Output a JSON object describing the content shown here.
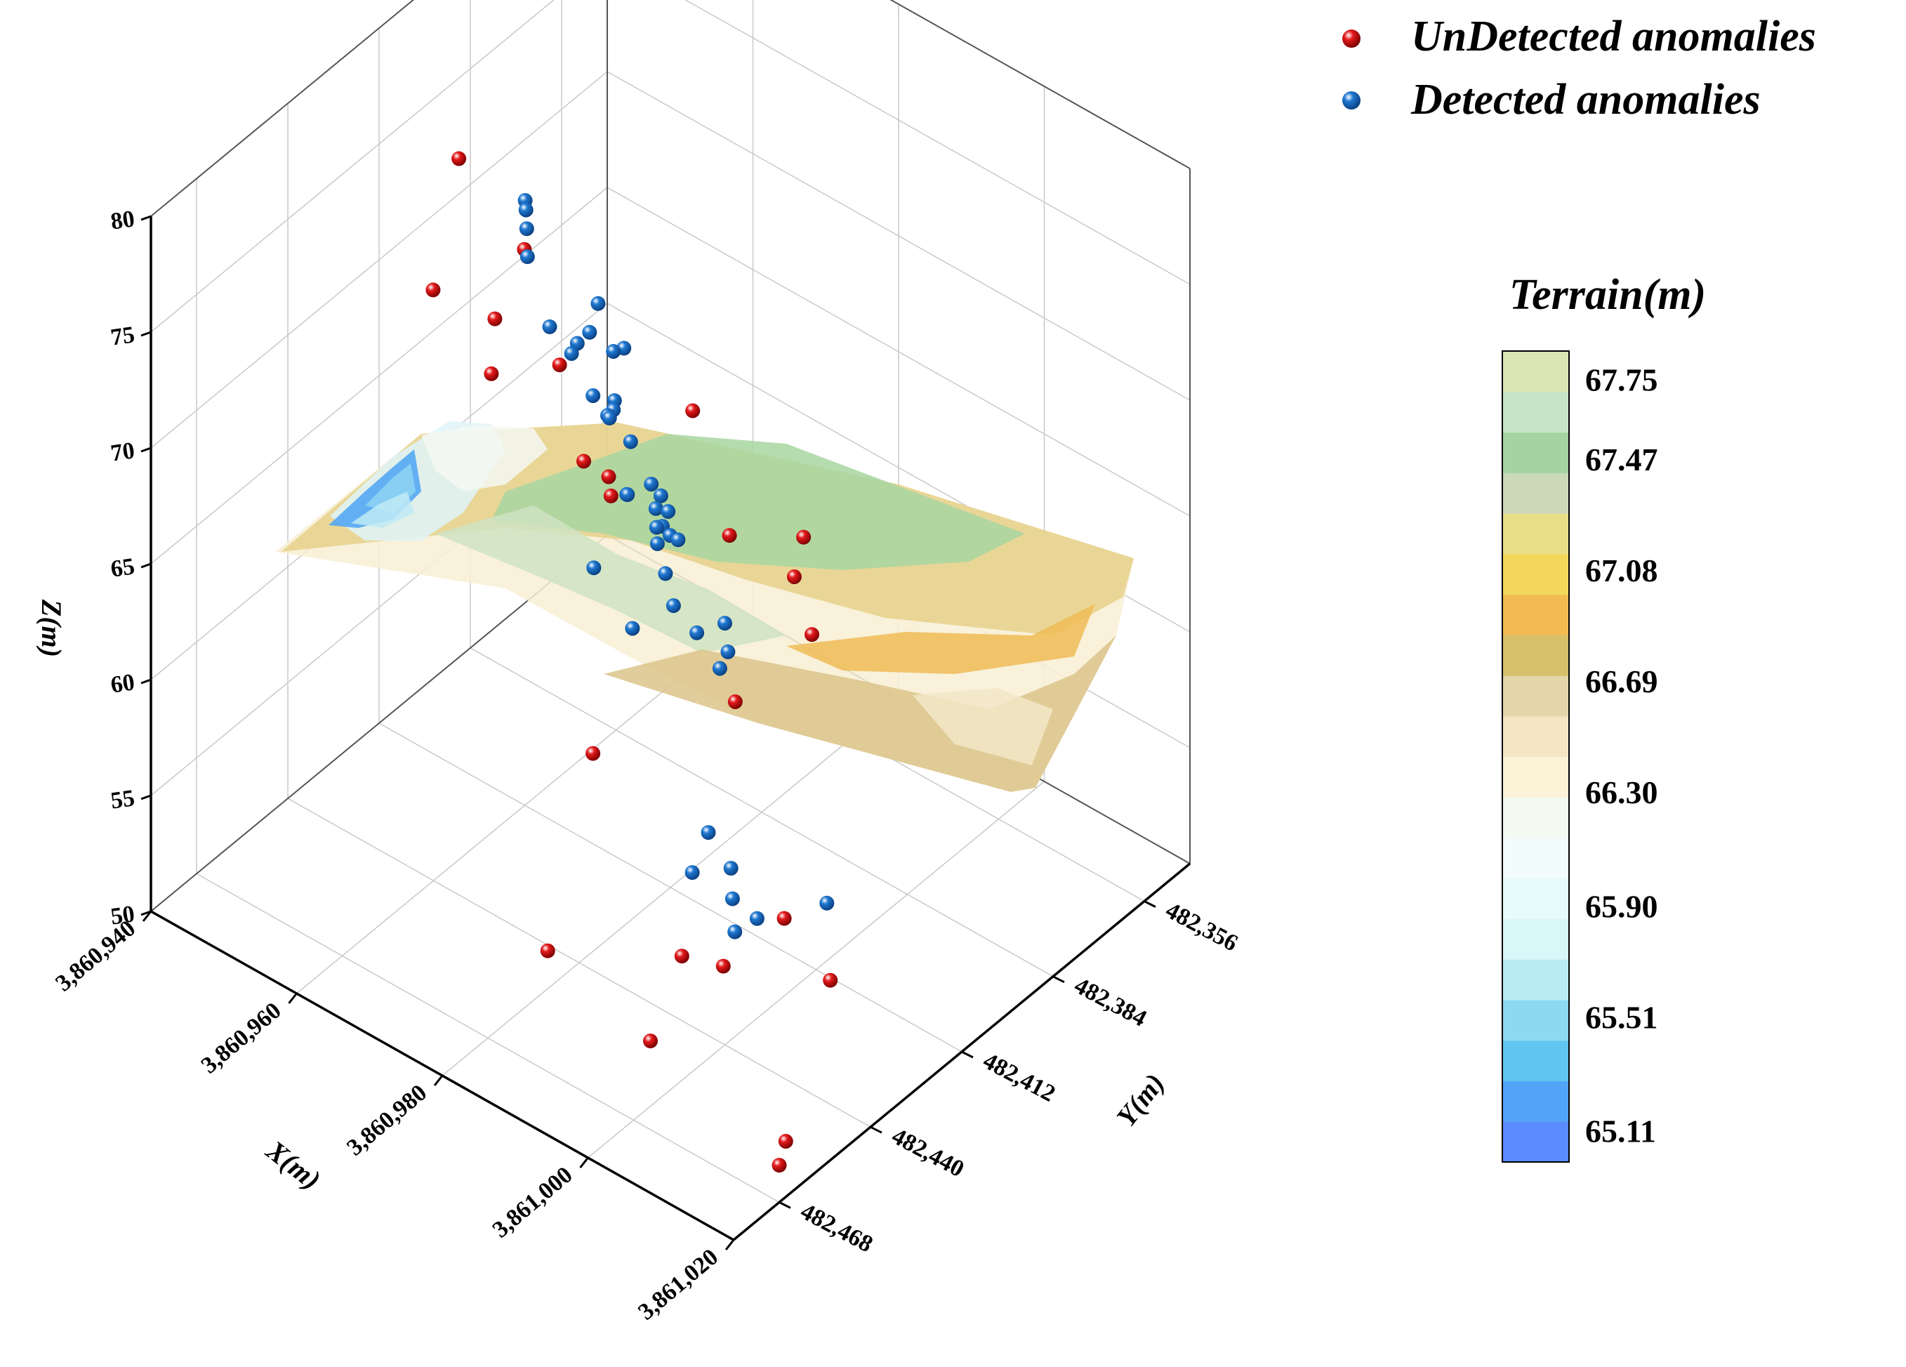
{
  "chart_data": {
    "type": "scatter",
    "subtype": "3d-scatter-with-terrain-surface",
    "title": "",
    "xlabel": "X(m)",
    "ylabel": "Y(m)",
    "zlabel": "Z(m)",
    "x_ticks": [
      "3,860,940",
      "3,860,960",
      "3,860,980",
      "3,861,000",
      "3,861,020"
    ],
    "y_ticks": [
      "482,356",
      "482,384",
      "482,412",
      "482,440",
      "482,468"
    ],
    "z_ticks": [
      "50",
      "55",
      "60",
      "65",
      "70",
      "75",
      "80"
    ],
    "xlim": [
      3860940,
      3861020
    ],
    "ylim": [
      482342,
      482482
    ],
    "zlim": [
      50,
      80
    ],
    "grid": true,
    "legend_position": "top-right",
    "series": [
      {
        "name": "UnDetected anomalies",
        "color": "#e31a1c",
        "points": [
          [
            3860942,
            482392,
            72.4
          ],
          [
            3860975,
            482394,
            67.6
          ],
          [
            3860972,
            482376,
            59.6
          ],
          [
            3860980,
            482374,
            59.0
          ],
          [
            3860975,
            482360,
            58.2
          ],
          [
            3860986,
            482382,
            58.5
          ],
          [
            3860988,
            482410,
            59.2
          ],
          [
            3861010,
            482430,
            53.4
          ],
          [
            3860968,
            482430,
            77.5
          ],
          [
            3860972,
            482448,
            77.3
          ],
          [
            3860968,
            482458,
            79.0
          ],
          [
            3860980,
            482446,
            76.5
          ],
          [
            3860976,
            482458,
            76.8
          ],
          [
            3860986,
            482452,
            74.1
          ],
          [
            3860993,
            482460,
            75.6
          ],
          [
            3860996,
            482466,
            76.0
          ],
          [
            3860998,
            482476,
            66.4
          ],
          [
            3861012,
            482480,
            60.6
          ],
          [
            3861015,
            482474,
            60.0
          ],
          [
            3861020,
            482468,
            51.6
          ],
          [
            3861020,
            482466,
            52.4
          ],
          [
            3861005,
            482474,
            55.0
          ],
          [
            3860990,
            482472,
            56.0
          ],
          [
            3861018,
            482462,
            61.2
          ]
        ]
      },
      {
        "name": "Detected anomalies",
        "color": "#1f78d1",
        "points": [
          [
            3860945,
            482356,
            62.5
          ],
          [
            3860948,
            482358,
            61.2
          ],
          [
            3860949,
            482357,
            61.4
          ],
          [
            3860952,
            482394,
            72.6
          ],
          [
            3860953,
            482396,
            72.6
          ],
          [
            3860954,
            482398,
            72.2
          ],
          [
            3860955,
            482400,
            71.4
          ],
          [
            3860958,
            482380,
            63.4
          ],
          [
            3860960,
            482386,
            63.7
          ],
          [
            3860962,
            482384,
            62.8
          ],
          [
            3860964,
            482400,
            67.0
          ],
          [
            3860966,
            482400,
            66.5
          ],
          [
            3860968,
            482410,
            71.6
          ],
          [
            3860969,
            482416,
            72.0
          ],
          [
            3860970,
            482420,
            72.2
          ],
          [
            3860972,
            482400,
            64.6
          ],
          [
            3860974,
            482412,
            65.9
          ],
          [
            3860975,
            482414,
            66.3
          ],
          [
            3860976,
            482406,
            65.5
          ],
          [
            3860977,
            482406,
            65.0
          ],
          [
            3860978,
            482410,
            65.0
          ],
          [
            3860978,
            482412,
            66.0
          ],
          [
            3860979,
            482414,
            65.6
          ],
          [
            3860980,
            482416,
            65.3
          ],
          [
            3860982,
            482418,
            64.6
          ],
          [
            3860984,
            482420,
            63.8
          ],
          [
            3860988,
            482430,
            68.7
          ],
          [
            3860990,
            482432,
            69.1
          ],
          [
            3861000,
            482440,
            68.2
          ],
          [
            3861002,
            482446,
            67.3
          ],
          [
            3861004,
            482448,
            68.6
          ],
          [
            3861006,
            482462,
            71.4
          ],
          [
            3861014,
            482440,
            58.6
          ],
          [
            3860950,
            482382,
            65.4
          ],
          [
            3860965,
            482396,
            66.1
          ],
          [
            3860982,
            482440,
            67.4
          ],
          [
            3860990,
            482446,
            66.9
          ],
          [
            3861004,
            482454,
            61.5
          ],
          [
            3861008,
            482456,
            60.9
          ],
          [
            3861010,
            482460,
            60.4
          ],
          [
            3861013,
            482466,
            60.2
          ],
          [
            3861000,
            482450,
            58.6
          ],
          [
            3861008,
            482448,
            57.8
          ]
        ]
      }
    ],
    "surface": {
      "name": "Terrain(m)",
      "colorbar_labels": [
        "67.75",
        "67.47",
        "67.08",
        "66.69",
        "66.30",
        "65.90",
        "65.51",
        "65.11"
      ],
      "colorbar_range": [
        65.0,
        67.85
      ],
      "colorbar_colors": [
        "#5a8cff",
        "#52a4f8",
        "#61c6ef",
        "#8dd9f0",
        "#b9ebf3",
        "#d9f6f8",
        "#e8fbfb",
        "#f3fcfc",
        "#f4f9f2",
        "#fbf2d8",
        "#f4e6c4",
        "#e4d6a8",
        "#d6c06a",
        "#f2bb52",
        "#f3d75b",
        "#e9de88",
        "#cbd9b8",
        "#a6d4a0",
        "#c6e4c7",
        "#dbe6b4"
      ]
    }
  },
  "legend": {
    "items": [
      {
        "label": "UnDetected anomalies",
        "color": "#e31a1c"
      },
      {
        "label": "Detected anomalies",
        "color": "#1f78d1"
      }
    ]
  }
}
